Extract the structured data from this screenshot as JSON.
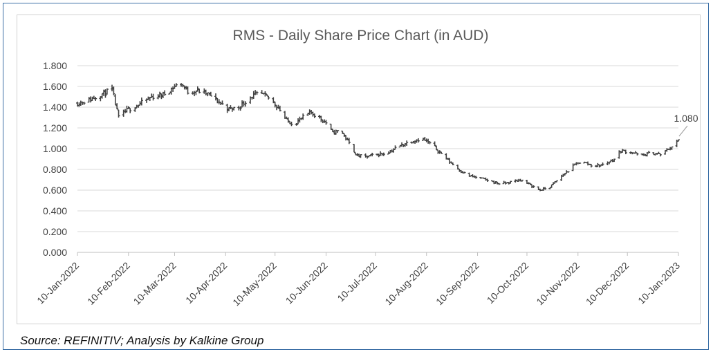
{
  "source_note": "Source: REFINITIV; Analysis by Kalkine Group",
  "chart_data": {
    "type": "ohlc",
    "title": "RMS - Daily Share Price Chart (in AUD)",
    "xlabel": "",
    "ylabel": "",
    "ylim": [
      0,
      1.8
    ],
    "yticks": [
      "0.000",
      "0.200",
      "0.400",
      "0.600",
      "0.800",
      "1.000",
      "1.200",
      "1.400",
      "1.600",
      "1.800"
    ],
    "xlim": [
      "2022-01-10",
      "2023-01-10"
    ],
    "xticks": [
      {
        "date": "2022-01-10",
        "label": "10-Jan-2022"
      },
      {
        "date": "2022-02-10",
        "label": "10-Feb-2022"
      },
      {
        "date": "2022-03-10",
        "label": "10-Mar-2022"
      },
      {
        "date": "2022-04-10",
        "label": "10-Apr-2022"
      },
      {
        "date": "2022-05-10",
        "label": "10-May-2022"
      },
      {
        "date": "2022-06-10",
        "label": "10-Jun-2022"
      },
      {
        "date": "2022-07-10",
        "label": "10-Jul-2022"
      },
      {
        "date": "2022-08-10",
        "label": "10-Aug-2022"
      },
      {
        "date": "2022-09-10",
        "label": "10-Sep-2022"
      },
      {
        "date": "2022-10-10",
        "label": "10-Oct-2022"
      },
      {
        "date": "2022-11-10",
        "label": "10-Nov-2022"
      },
      {
        "date": "2022-12-10",
        "label": "10-Dec-2022"
      },
      {
        "date": "2023-01-10",
        "label": "10-Jan-2023"
      }
    ],
    "grid": "horizontal",
    "bar_color": "#404040",
    "grid_color": "#d9d9d9",
    "last_value_label": "1.080",
    "price_trend": [
      [
        "2022-01-10",
        1.44
      ],
      [
        "2022-01-17",
        1.47
      ],
      [
        "2022-01-24",
        1.52
      ],
      [
        "2022-01-31",
        1.57
      ],
      [
        "2022-02-04",
        1.3
      ],
      [
        "2022-02-10",
        1.38
      ],
      [
        "2022-02-17",
        1.43
      ],
      [
        "2022-02-24",
        1.5
      ],
      [
        "2022-03-03",
        1.52
      ],
      [
        "2022-03-10",
        1.6
      ],
      [
        "2022-03-14",
        1.63
      ],
      [
        "2022-03-18",
        1.55
      ],
      [
        "2022-03-24",
        1.56
      ],
      [
        "2022-03-31",
        1.52
      ],
      [
        "2022-04-06",
        1.45
      ],
      [
        "2022-04-12",
        1.38
      ],
      [
        "2022-04-18",
        1.4
      ],
      [
        "2022-04-25",
        1.5
      ],
      [
        "2022-05-01",
        1.53
      ],
      [
        "2022-05-07",
        1.48
      ],
      [
        "2022-05-12",
        1.4
      ],
      [
        "2022-05-17",
        1.27
      ],
      [
        "2022-05-22",
        1.24
      ],
      [
        "2022-05-27",
        1.3
      ],
      [
        "2022-06-01",
        1.35
      ],
      [
        "2022-06-06",
        1.3
      ],
      [
        "2022-06-10",
        1.25
      ],
      [
        "2022-06-14",
        1.15
      ],
      [
        "2022-06-19",
        1.18
      ],
      [
        "2022-06-24",
        1.05
      ],
      [
        "2022-06-29",
        0.93
      ],
      [
        "2022-07-04",
        0.92
      ],
      [
        "2022-07-10",
        0.94
      ],
      [
        "2022-07-17",
        0.96
      ],
      [
        "2022-07-24",
        1.02
      ],
      [
        "2022-07-31",
        1.07
      ],
      [
        "2022-08-07",
        1.1
      ],
      [
        "2022-08-14",
        1.03
      ],
      [
        "2022-08-21",
        0.92
      ],
      [
        "2022-08-28",
        0.82
      ],
      [
        "2022-09-04",
        0.74
      ],
      [
        "2022-09-10",
        0.72
      ],
      [
        "2022-09-17",
        0.69
      ],
      [
        "2022-09-24",
        0.66
      ],
      [
        "2022-10-01",
        0.68
      ],
      [
        "2022-10-06",
        0.7
      ],
      [
        "2022-10-12",
        0.65
      ],
      [
        "2022-10-18",
        0.6
      ],
      [
        "2022-10-24",
        0.63
      ],
      [
        "2022-10-30",
        0.72
      ],
      [
        "2022-11-05",
        0.8
      ],
      [
        "2022-11-10",
        0.87
      ],
      [
        "2022-11-15",
        0.86
      ],
      [
        "2022-11-20",
        0.83
      ],
      [
        "2022-11-26",
        0.85
      ],
      [
        "2022-12-02",
        0.9
      ],
      [
        "2022-12-06",
        0.98
      ],
      [
        "2022-12-12",
        0.97
      ],
      [
        "2022-12-18",
        0.93
      ],
      [
        "2022-12-25",
        0.96
      ],
      [
        "2022-12-31",
        0.94
      ],
      [
        "2023-01-04",
        1.0
      ],
      [
        "2023-01-08",
        1.04
      ],
      [
        "2023-01-10",
        1.08
      ]
    ]
  }
}
